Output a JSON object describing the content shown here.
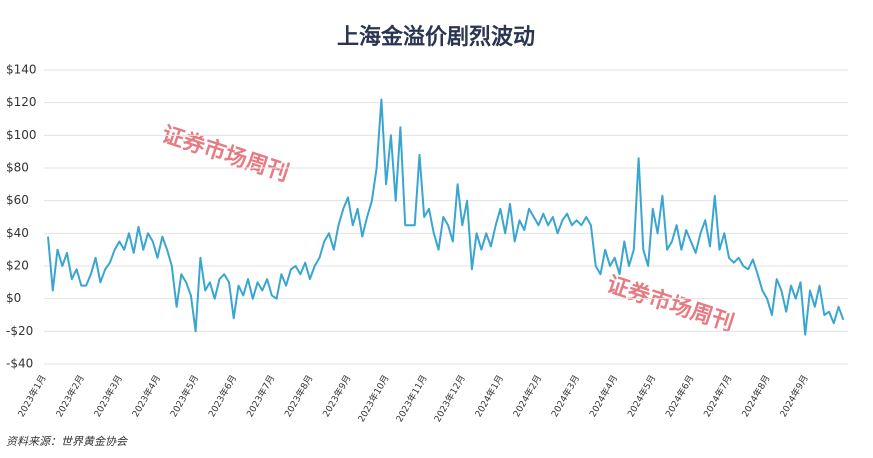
{
  "chart_data": {
    "type": "line",
    "title": "上海金溢价剧烈波动",
    "source": "资料来源：世界黄金协会",
    "watermark": "证券市场周刊",
    "xticks": [
      "2023年1月",
      "2023年2月",
      "2023年3月",
      "2023年4月",
      "2023年5月",
      "2023年6月",
      "2023年7月",
      "2023年8月",
      "2023年9月",
      "2023年10月",
      "2023年11月",
      "2023年12月",
      "2024年1月",
      "2024年2月",
      "2024年3月",
      "2024年4月",
      "2024年5月",
      "2024年6月",
      "2024年7月",
      "2024年8月",
      "2024年9月"
    ],
    "series": [
      {
        "color": "#3aa6d0",
        "values": [
          38,
          5,
          30,
          20,
          28,
          12,
          18,
          8,
          8,
          15,
          25,
          10,
          18,
          22,
          30,
          35,
          30,
          40,
          28,
          44,
          30,
          40,
          35,
          25,
          38,
          30,
          20,
          -5,
          15,
          10,
          2,
          -20,
          25,
          5,
          10,
          0,
          12,
          15,
          10,
          -12,
          8,
          2,
          12,
          0,
          10,
          5,
          12,
          2,
          0,
          15,
          8,
          18,
          20,
          15,
          22,
          12,
          20,
          25,
          35,
          40,
          30,
          45,
          55,
          62,
          45,
          55,
          38,
          50,
          60,
          80,
          122,
          70,
          100,
          60,
          105,
          45,
          45,
          45,
          88,
          50,
          55,
          40,
          30,
          50,
          45,
          35,
          70,
          45,
          60,
          18,
          40,
          30,
          40,
          32,
          45,
          55,
          40,
          58,
          35,
          48,
          42,
          55,
          50,
          45,
          52,
          45,
          50,
          40,
          48,
          52,
          45,
          48,
          45,
          50,
          45,
          20,
          15,
          30,
          20,
          25,
          15,
          35,
          20,
          30,
          86,
          30,
          20,
          55,
          40,
          63,
          30,
          35,
          45,
          30,
          42,
          35,
          28,
          40,
          48,
          32,
          63,
          30,
          40,
          25,
          22,
          25,
          20,
          18,
          24,
          15,
          5,
          0,
          -10,
          12,
          5,
          -8,
          8,
          0,
          10,
          -22,
          5,
          -5,
          8,
          -10,
          -8,
          -15,
          -5,
          -13
        ]
      }
    ],
    "ylim": [
      -40,
      140
    ],
    "yticks": [
      {
        "value": -40,
        "label": "-$40"
      },
      {
        "value": -20,
        "label": "-$20"
      },
      {
        "value": 0,
        "label": "$0"
      },
      {
        "value": 20,
        "label": "$20"
      },
      {
        "value": 40,
        "label": "$40"
      },
      {
        "value": 60,
        "label": "$60"
      },
      {
        "value": 80,
        "label": "$80"
      },
      {
        "value": 100,
        "label": "$100"
      },
      {
        "value": 120,
        "label": "$120"
      },
      {
        "value": 140,
        "label": "$140"
      }
    ],
    "grid": true
  }
}
